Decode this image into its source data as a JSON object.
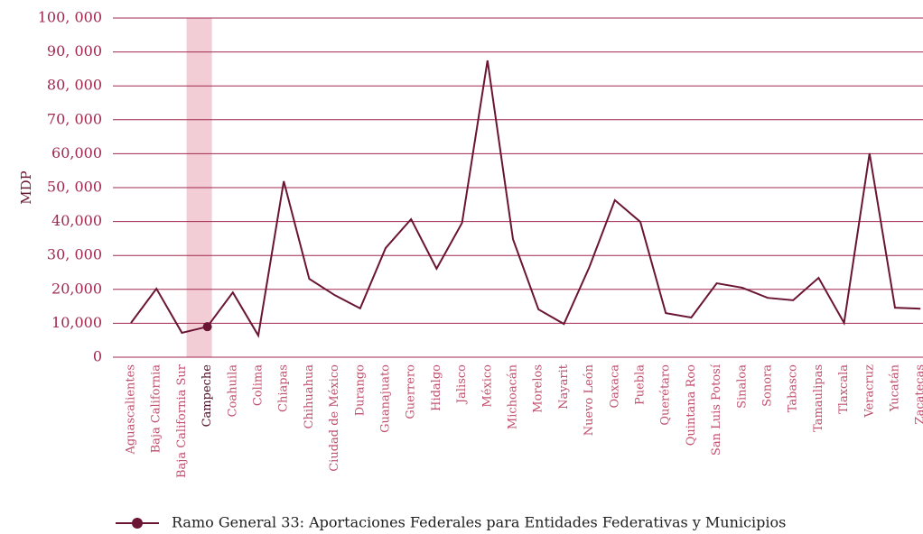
{
  "chart_data": {
    "type": "line",
    "y_label": "MDP",
    "categories": [
      "Aguascalientes",
      "Baja California",
      "Baja California Sur",
      "Campeche",
      "Coahuila",
      "Colima",
      "Chiapas",
      "Chihuahua",
      "Ciudad de México",
      "Durango",
      "Guanajuato",
      "Guerrero",
      "Hidalgo",
      "Jalisco",
      "México",
      "Michoacán",
      "Morelos",
      "Nayarit",
      "Nuevo León",
      "Oaxaca",
      "Puebla",
      "Querétaro",
      "Quintana Roo",
      "San Luis Potosí",
      "Sinaloa",
      "Sonora",
      "Tabasco",
      "Tamaulipas",
      "Tlaxcala",
      "Veracruz",
      "Yucatán",
      "Zacatecas"
    ],
    "series": [
      {
        "name": "Ramo General 33: Aportaciones Federales para Entidades Federativas y Municipios",
        "color": "#6b1535",
        "values": [
          10100,
          20200,
          7200,
          9000,
          19100,
          6400,
          51900,
          23100,
          18300,
          14400,
          32200,
          40700,
          26100,
          39600,
          87500,
          34800,
          14100,
          9800,
          26600,
          46300,
          39900,
          13000,
          11700,
          21800,
          20500,
          17500,
          16800,
          23400,
          10100,
          60100,
          14600,
          14300
        ]
      }
    ],
    "highlight": "Campeche",
    "highlight_color": "#f2cdd6",
    "ylim": [
      0,
      100000
    ],
    "yticks": [
      0,
      {
        "value": 10000,
        "label": "10,000"
      },
      {
        "value": 20000,
        "label": "20,000"
      },
      {
        "value": 30000,
        "label": "30, 000"
      },
      {
        "value": 40000,
        "label": "40,000"
      },
      {
        "value": 50000,
        "label": "50, 000"
      },
      {
        "value": 60000,
        "label": "60,000"
      },
      {
        "value": 70000,
        "label": "70, 000"
      },
      {
        "value": 80000,
        "label": "80, 000"
      },
      {
        "value": 90000,
        "label": "90, 000"
      },
      {
        "value": 100000,
        "label": "100, 000"
      }
    ],
    "grid": true,
    "legend": "bottom"
  }
}
